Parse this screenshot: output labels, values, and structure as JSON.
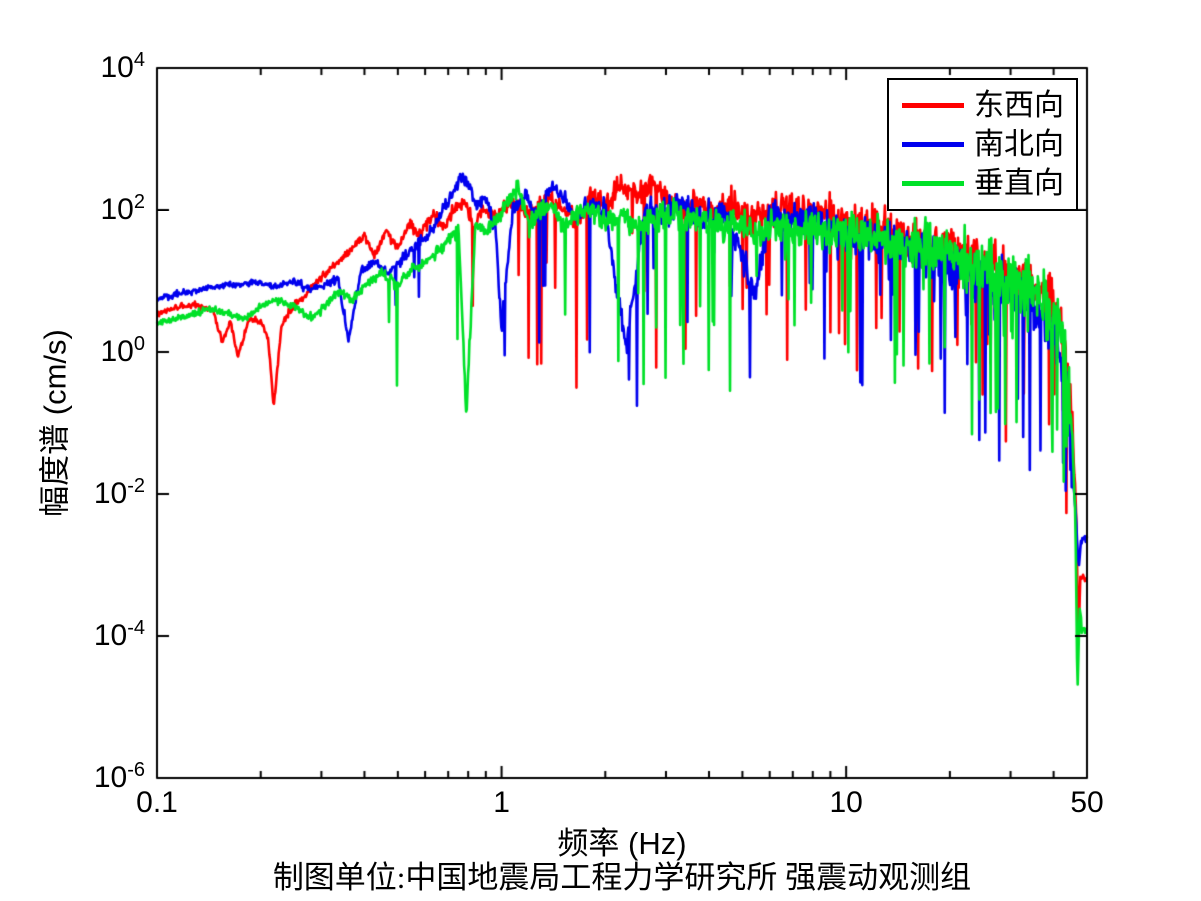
{
  "chart_data": {
    "type": "line",
    "title": "",
    "xlabel": "频率 (Hz)",
    "ylabel": "幅度谱 (cm/s)",
    "caption": "制图单位:中国地震局工程力学研究所 强震动观测组",
    "xscale": "log",
    "yscale": "log",
    "xlim": [
      0.1,
      50
    ],
    "ylim": [
      1e-06,
      10000.0
    ],
    "grid": false,
    "axis_color": "#000000",
    "background": "#ffffff",
    "xticks": {
      "major": [
        0.1,
        1,
        10,
        50
      ],
      "labels": [
        "0.1",
        "1",
        "10",
        "50"
      ],
      "minor": [
        0.2,
        0.3,
        0.4,
        0.5,
        0.6,
        0.7,
        0.8,
        0.9,
        2,
        3,
        4,
        5,
        6,
        7,
        8,
        9,
        20,
        30,
        40
      ]
    },
    "yticks": {
      "base": "10",
      "exponents": [
        4,
        2,
        0,
        -2,
        -4,
        -6
      ]
    },
    "legend": {
      "position": "top-right",
      "border_color": "#000000",
      "background": "#ffffff"
    },
    "series": [
      {
        "name": "东西向",
        "color": "#ff0000",
        "seed": 101,
        "envelope": [
          [
            0.1,
            3.5
          ],
          [
            0.115,
            4.3
          ],
          [
            0.13,
            4.6
          ],
          [
            0.145,
            4.0
          ],
          [
            0.155,
            1.4
          ],
          [
            0.163,
            2.8
          ],
          [
            0.172,
            0.85
          ],
          [
            0.185,
            3.0
          ],
          [
            0.2,
            2.6
          ],
          [
            0.21,
            1.6
          ],
          [
            0.218,
            0.17
          ],
          [
            0.23,
            2.4
          ],
          [
            0.25,
            4.5
          ],
          [
            0.27,
            6.5
          ],
          [
            0.3,
            11
          ],
          [
            0.33,
            18
          ],
          [
            0.36,
            26
          ],
          [
            0.4,
            42
          ],
          [
            0.43,
            22
          ],
          [
            0.46,
            50
          ],
          [
            0.5,
            30
          ],
          [
            0.54,
            65
          ],
          [
            0.58,
            45
          ],
          [
            0.63,
            85
          ],
          [
            0.68,
            55
          ],
          [
            0.73,
            105
          ],
          [
            0.78,
            135
          ],
          [
            0.83,
            55
          ],
          [
            0.88,
            115
          ],
          [
            0.95,
            85
          ],
          [
            1.0,
            105
          ],
          [
            1.1,
            130
          ],
          [
            1.2,
            85
          ],
          [
            1.35,
            140
          ],
          [
            1.5,
            105
          ],
          [
            1.65,
            65
          ],
          [
            1.8,
            150
          ],
          [
            2.0,
            115
          ],
          [
            2.2,
            220
          ],
          [
            2.45,
            170
          ],
          [
            2.7,
            240
          ],
          [
            3.0,
            150
          ],
          [
            3.3,
            100
          ],
          [
            3.7,
            130
          ],
          [
            4.2,
            95
          ],
          [
            4.7,
            115
          ],
          [
            5.2,
            75
          ],
          [
            5.8,
            95
          ],
          [
            6.5,
            110
          ],
          [
            7.5,
            85
          ],
          [
            8.5,
            95
          ],
          [
            10,
            70
          ],
          [
            12,
            55
          ],
          [
            14,
            45
          ],
          [
            17,
            36
          ],
          [
            20,
            28
          ],
          [
            24,
            20
          ],
          [
            28,
            14
          ],
          [
            33,
            9
          ],
          [
            38,
            5.5
          ],
          [
            41,
            3
          ],
          [
            43,
            1.2
          ],
          [
            44.5,
            0.35
          ],
          [
            45.5,
            0.06
          ],
          [
            46.5,
            0.006
          ],
          [
            47.2,
            7e-05
          ],
          [
            47.8,
            0.00065
          ],
          [
            50,
            0.00065
          ]
        ]
      },
      {
        "name": "南北向",
        "color": "#0000ee",
        "seed": 202,
        "envelope": [
          [
            0.1,
            5.5
          ],
          [
            0.12,
            6.8
          ],
          [
            0.14,
            8.0
          ],
          [
            0.16,
            8.8
          ],
          [
            0.18,
            9.2
          ],
          [
            0.2,
            9.6
          ],
          [
            0.22,
            8.2
          ],
          [
            0.25,
            10
          ],
          [
            0.28,
            7.5
          ],
          [
            0.31,
            9
          ],
          [
            0.335,
            11
          ],
          [
            0.36,
            1.4
          ],
          [
            0.39,
            14
          ],
          [
            0.43,
            19
          ],
          [
            0.47,
            13
          ],
          [
            0.52,
            23
          ],
          [
            0.57,
            32
          ],
          [
            0.62,
            48
          ],
          [
            0.67,
            95
          ],
          [
            0.72,
            170
          ],
          [
            0.76,
            290
          ],
          [
            0.8,
            240
          ],
          [
            0.85,
            105
          ],
          [
            0.9,
            155
          ],
          [
            0.96,
            55
          ],
          [
            1.0,
            2.2
          ],
          [
            1.08,
            115
          ],
          [
            1.18,
            150
          ],
          [
            1.28,
            85
          ],
          [
            1.4,
            215
          ],
          [
            1.52,
            150
          ],
          [
            1.65,
            75
          ],
          [
            1.8,
            125
          ],
          [
            2.0,
            95
          ],
          [
            2.3,
            1.1
          ],
          [
            2.6,
            105
          ],
          [
            2.9,
            85
          ],
          [
            3.3,
            135
          ],
          [
            3.8,
            70
          ],
          [
            4.3,
            90
          ],
          [
            4.8,
            45
          ],
          [
            5.4,
            6
          ],
          [
            6.0,
            80
          ],
          [
            7.0,
            65
          ],
          [
            8.0,
            88
          ],
          [
            9.0,
            55
          ],
          [
            10,
            48
          ],
          [
            12,
            38
          ],
          [
            14,
            30
          ],
          [
            17,
            24
          ],
          [
            20,
            17
          ],
          [
            24,
            12
          ],
          [
            28,
            8
          ],
          [
            33,
            5
          ],
          [
            38,
            2.8
          ],
          [
            41,
            1.4
          ],
          [
            43,
            0.5
          ],
          [
            44.5,
            0.12
          ],
          [
            45.5,
            0.02
          ],
          [
            46.5,
            0.004
          ],
          [
            47.3,
            0.0008
          ],
          [
            48,
            0.0023
          ],
          [
            50,
            0.0023
          ]
        ]
      },
      {
        "name": "垂直向",
        "color": "#00e128",
        "seed": 303,
        "envelope": [
          [
            0.1,
            2.5
          ],
          [
            0.12,
            3.1
          ],
          [
            0.14,
            4.0
          ],
          [
            0.16,
            3.5
          ],
          [
            0.18,
            2.9
          ],
          [
            0.2,
            4.3
          ],
          [
            0.22,
            5.3
          ],
          [
            0.25,
            4.4
          ],
          [
            0.28,
            3.0
          ],
          [
            0.31,
            4.6
          ],
          [
            0.34,
            7.5
          ],
          [
            0.37,
            5.5
          ],
          [
            0.41,
            9.5
          ],
          [
            0.45,
            13
          ],
          [
            0.5,
            9
          ],
          [
            0.55,
            15
          ],
          [
            0.6,
            18
          ],
          [
            0.65,
            25
          ],
          [
            0.7,
            38
          ],
          [
            0.75,
            55
          ],
          [
            0.79,
            0.14
          ],
          [
            0.84,
            65
          ],
          [
            0.9,
            48
          ],
          [
            0.97,
            75
          ],
          [
            1.05,
            145
          ],
          [
            1.12,
            200
          ],
          [
            1.2,
            60
          ],
          [
            1.3,
            95
          ],
          [
            1.4,
            125
          ],
          [
            1.5,
            55
          ],
          [
            1.62,
            85
          ],
          [
            1.8,
            105
          ],
          [
            2.0,
            68
          ],
          [
            2.2,
            88
          ],
          [
            2.5,
            58
          ],
          [
            2.8,
            78
          ],
          [
            3.2,
            95
          ],
          [
            3.6,
            68
          ],
          [
            4.0,
            80
          ],
          [
            4.5,
            50
          ],
          [
            5.0,
            68
          ],
          [
            5.6,
            40
          ],
          [
            6.2,
            58
          ],
          [
            7.0,
            48
          ],
          [
            8.0,
            58
          ],
          [
            9.0,
            44
          ],
          [
            10,
            50
          ],
          [
            12,
            40
          ],
          [
            14,
            34
          ],
          [
            17,
            29
          ],
          [
            20,
            24
          ],
          [
            24,
            18
          ],
          [
            28,
            13
          ],
          [
            33,
            8.5
          ],
          [
            38,
            4.5
          ],
          [
            41,
            2.2
          ],
          [
            43,
            0.9
          ],
          [
            44.5,
            0.25
          ],
          [
            45.5,
            0.04
          ],
          [
            46.3,
            0.004
          ],
          [
            46.9,
            1.5e-05
          ],
          [
            47.6,
            0.00025
          ],
          [
            48.3,
            0.00013
          ],
          [
            50,
            0.00013
          ]
        ]
      }
    ],
    "noise": {
      "points": 1400,
      "sd_base": 0.02,
      "sd_growth": 0.2,
      "sd_exp": 1.8,
      "spike_prob_max": 0.085,
      "spike_t_onset": 0.2,
      "spike_min_dec": 0.4,
      "spike_extra_dec": 2.0,
      "spike_cutoff_hz": 44.5,
      "taper_hz": 45.5
    }
  }
}
